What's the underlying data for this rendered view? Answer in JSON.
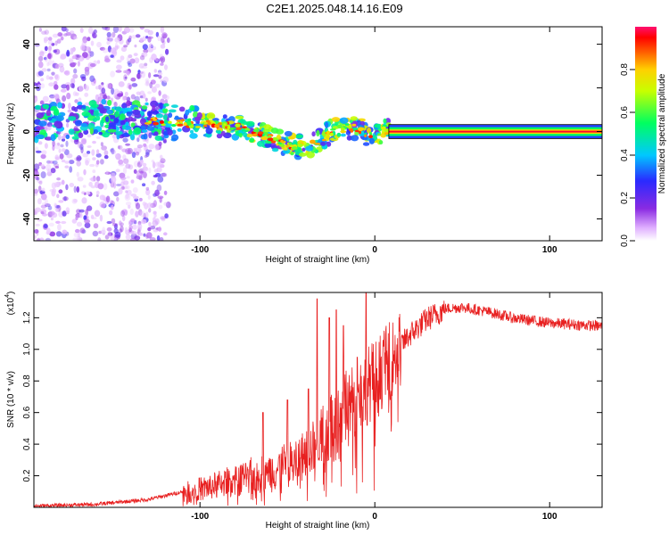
{
  "title": "C2E1.2025.048.14.16.E09",
  "chart_data": [
    {
      "type": "heatmap",
      "name": "spectrogram",
      "xlabel": "Height of straight line (km)",
      "ylabel": "Frequency (Hz)",
      "xlim": [
        -195,
        130
      ],
      "ylim": [
        -50,
        48
      ],
      "xticks": [
        -100,
        0,
        100
      ],
      "yticks": [
        -40,
        -20,
        0,
        20,
        40
      ],
      "ridge": [
        [
          -195,
          4
        ],
        [
          -170,
          5
        ],
        [
          -150,
          6
        ],
        [
          -130,
          5
        ],
        [
          -110,
          4
        ],
        [
          -90,
          3
        ],
        [
          -75,
          2
        ],
        [
          -60,
          -3
        ],
        [
          -45,
          -7
        ],
        [
          -35,
          -6
        ],
        [
          -25,
          0
        ],
        [
          -15,
          2
        ],
        [
          -8,
          1
        ],
        [
          -3,
          -2
        ],
        [
          5,
          0
        ],
        [
          130,
          0
        ]
      ],
      "colorbar": {
        "label": "Normalized spectral amplitude",
        "range": [
          0,
          1
        ],
        "ticks": [
          "0.0",
          "0.2",
          "0.4",
          "0.6",
          "0.8"
        ]
      }
    },
    {
      "type": "line",
      "name": "snr",
      "color": "#e82020",
      "xlabel": "Height of straight line (km)",
      "ylabel": "SNR (10 * v/v)",
      "yunit_label": "(x10",
      "yunit_exp": "4",
      "xlim": [
        -195,
        130
      ],
      "ylim": [
        0,
        1.36
      ],
      "xticks": [
        -100,
        0,
        100
      ],
      "yticks": [
        "0.2",
        "0.4",
        "0.6",
        "0.8",
        "1.0",
        "1.2"
      ],
      "envelope": [
        [
          -195,
          0.01
        ],
        [
          -160,
          0.02
        ],
        [
          -130,
          0.05
        ],
        [
          -110,
          0.1
        ],
        [
          -90,
          0.15
        ],
        [
          -75,
          0.2
        ],
        [
          -60,
          0.24
        ],
        [
          -45,
          0.3
        ],
        [
          -35,
          0.4
        ],
        [
          -28,
          0.5
        ],
        [
          -20,
          0.6
        ],
        [
          -10,
          0.72
        ],
        [
          0,
          0.85
        ],
        [
          10,
          0.97
        ],
        [
          20,
          1.1
        ],
        [
          30,
          1.2
        ],
        [
          40,
          1.26
        ],
        [
          50,
          1.27
        ],
        [
          65,
          1.24
        ],
        [
          80,
          1.2
        ],
        [
          100,
          1.17
        ],
        [
          130,
          1.15
        ]
      ],
      "spikes": [
        [
          -64,
          0.6
        ],
        [
          -50,
          0.68
        ],
        [
          -38,
          0.75
        ],
        [
          -33,
          1.32
        ],
        [
          -26,
          1.2
        ],
        [
          -22,
          1.25
        ],
        [
          -18,
          1.15
        ],
        [
          -10,
          0.95
        ],
        [
          -5,
          1.36
        ],
        [
          -2,
          0.9
        ],
        [
          5,
          1.02
        ]
      ]
    }
  ]
}
